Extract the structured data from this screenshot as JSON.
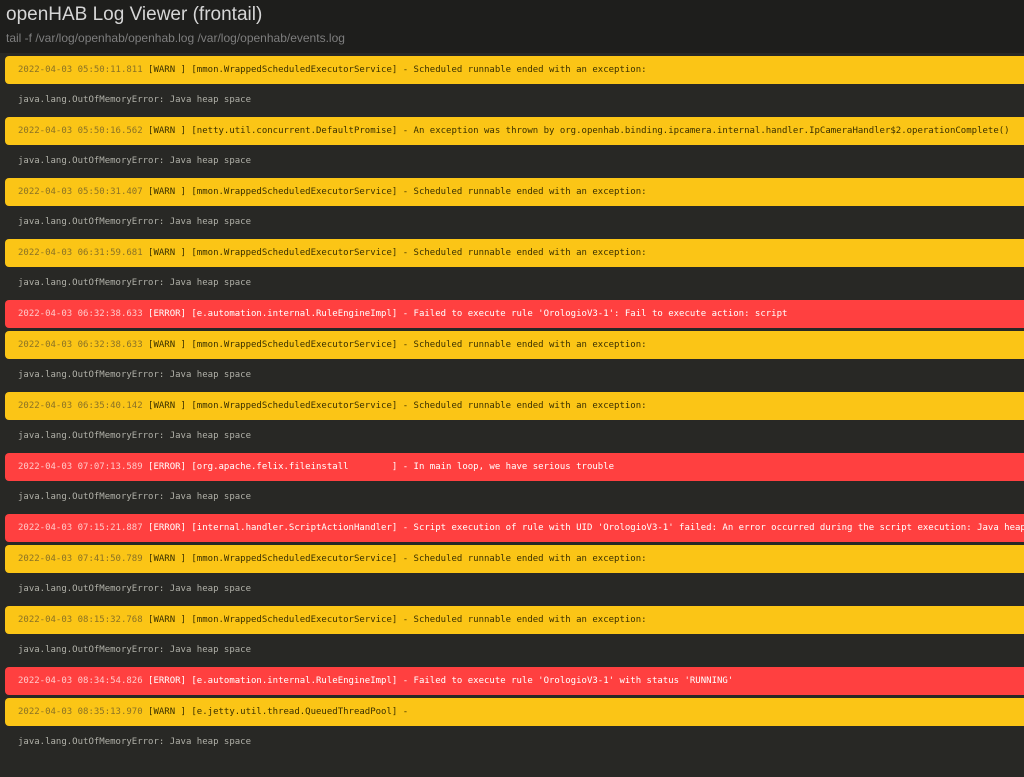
{
  "header": {
    "title": "openHAB Log Viewer (frontail)",
    "subtitle": "tail -f /var/log/openhab/openhab.log /var/log/openhab/events.log"
  },
  "colors": {
    "warn": "#fbc516",
    "error": "#ff4040",
    "background": "#282825"
  },
  "entries": [
    {
      "type": "warn",
      "ts": "2022-04-03 05:50:11.811",
      "msg": " [WARN ] [mmon.WrappedScheduledExecutorService] - Scheduled runnable ended with an exception:"
    },
    {
      "type": "plain",
      "msg": "java.lang.OutOfMemoryError: Java heap space"
    },
    {
      "type": "warn",
      "ts": "2022-04-03 05:50:16.562",
      "msg": " [WARN ] [netty.util.concurrent.DefaultPromise] - An exception was thrown by org.openhab.binding.ipcamera.internal.handler.IpCameraHandler$2.operationComplete()"
    },
    {
      "type": "plain",
      "msg": "java.lang.OutOfMemoryError: Java heap space"
    },
    {
      "type": "warn",
      "ts": "2022-04-03 05:50:31.407",
      "msg": " [WARN ] [mmon.WrappedScheduledExecutorService] - Scheduled runnable ended with an exception:"
    },
    {
      "type": "plain",
      "msg": "java.lang.OutOfMemoryError: Java heap space"
    },
    {
      "type": "warn",
      "ts": "2022-04-03 06:31:59.681",
      "msg": " [WARN ] [mmon.WrappedScheduledExecutorService] - Scheduled runnable ended with an exception:"
    },
    {
      "type": "plain",
      "msg": "java.lang.OutOfMemoryError: Java heap space"
    },
    {
      "type": "error",
      "ts": "2022-04-03 06:32:38.633",
      "msg": " [ERROR] [e.automation.internal.RuleEngineImpl] - Failed to execute rule 'OrologioV3-1': Fail to execute action: script"
    },
    {
      "type": "warn",
      "ts": "2022-04-03 06:32:38.633",
      "msg": " [WARN ] [mmon.WrappedScheduledExecutorService] - Scheduled runnable ended with an exception:"
    },
    {
      "type": "plain",
      "msg": "java.lang.OutOfMemoryError: Java heap space"
    },
    {
      "type": "warn",
      "ts": "2022-04-03 06:35:40.142",
      "msg": " [WARN ] [mmon.WrappedScheduledExecutorService] - Scheduled runnable ended with an exception:"
    },
    {
      "type": "plain",
      "msg": "java.lang.OutOfMemoryError: Java heap space"
    },
    {
      "type": "error",
      "ts": "2022-04-03 07:07:13.589",
      "msg": " [ERROR] [org.apache.felix.fileinstall        ] - In main loop, we have serious trouble"
    },
    {
      "type": "plain",
      "msg": "java.lang.OutOfMemoryError: Java heap space"
    },
    {
      "type": "error",
      "ts": "2022-04-03 07:15:21.887",
      "msg": " [ERROR] [internal.handler.ScriptActionHandler] - Script execution of rule with UID 'OrologioV3-1' failed: An error occurred during the script execution: Java heap space"
    },
    {
      "type": "warn",
      "ts": "2022-04-03 07:41:50.789",
      "msg": " [WARN ] [mmon.WrappedScheduledExecutorService] - Scheduled runnable ended with an exception:"
    },
    {
      "type": "plain",
      "msg": "java.lang.OutOfMemoryError: Java heap space"
    },
    {
      "type": "warn",
      "ts": "2022-04-03 08:15:32.768",
      "msg": " [WARN ] [mmon.WrappedScheduledExecutorService] - Scheduled runnable ended with an exception:"
    },
    {
      "type": "plain",
      "msg": "java.lang.OutOfMemoryError: Java heap space"
    },
    {
      "type": "error",
      "ts": "2022-04-03 08:34:54.826",
      "msg": " [ERROR] [e.automation.internal.RuleEngineImpl] - Failed to execute rule 'OrologioV3-1' with status 'RUNNING'"
    },
    {
      "type": "warn",
      "ts": "2022-04-03 08:35:13.970",
      "msg": " [WARN ] [e.jetty.util.thread.QueuedThreadPool] -"
    },
    {
      "type": "plain",
      "msg": "java.lang.OutOfMemoryError: Java heap space"
    }
  ]
}
